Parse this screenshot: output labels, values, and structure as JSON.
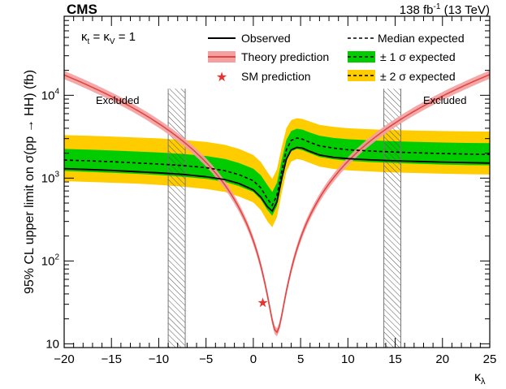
{
  "chart_data": {
    "type": "line",
    "experiment": "CMS",
    "lumi_value": "138 fb",
    "lumi_exponent": "-1",
    "lumi_energy": " (13 TeV)",
    "coupling_note": {
      "k": "κ",
      "t": "t",
      "eq": " = ",
      "v": "V",
      "val": " = 1"
    },
    "ylabel": "95% CL upper limit on σ(pp → HH) (fb)",
    "xlabel": {
      "k": "κ",
      "sub": "λ"
    },
    "xlim": [
      -20,
      25
    ],
    "ylim": [
      9,
      90000
    ],
    "yscale": "log",
    "x_ticks": [
      -20,
      -15,
      -10,
      -5,
      0,
      5,
      10,
      15,
      20,
      25
    ],
    "x_tick_labels": [
      "−20",
      "−15",
      "−10",
      "−5",
      "0",
      "5",
      "10",
      "15",
      "20",
      "25"
    ],
    "y_ticks": [
      {
        "base": "10",
        "exp": ""
      },
      {
        "base": "10",
        "exp": "2"
      },
      {
        "base": "10",
        "exp": "3"
      },
      {
        "base": "10",
        "exp": "4"
      }
    ],
    "y_tick_values": [
      10,
      100,
      1000,
      10000
    ],
    "excluded_label": "Excluded",
    "excluded_bands": [
      [
        -9.0,
        -7.2
      ],
      [
        13.8,
        15.6
      ]
    ],
    "legend": {
      "observed": "Observed",
      "median": "Median expected",
      "theory": "Theory prediction",
      "one_sigma": "± 1 σ expected",
      "sm": "SM prediction",
      "two_sigma": "± 2 σ expected"
    },
    "colors": {
      "observed": "#000000",
      "one_sigma": "#00cc00",
      "two_sigma": "#ffcc00",
      "theory_line": "#e34545",
      "theory_band": "#f3a0a0",
      "sm_star": "#e8322f",
      "hatch": "#555555"
    },
    "sm_point": {
      "x": 1.0,
      "y": 32
    },
    "kappa": [
      -20,
      -17.5,
      -15,
      -12.5,
      -10,
      -7.5,
      -5,
      -3,
      -1.5,
      0,
      0.8,
      1.5,
      2.0,
      2.5,
      3.0,
      3.5,
      4.0,
      4.6,
      5.2,
      6,
      7,
      8.5,
      10,
      12.5,
      15,
      17.5,
      20,
      22.5,
      25
    ],
    "series": [
      {
        "name": "Observed",
        "values": [
          1300,
          1270,
          1240,
          1200,
          1160,
          1110,
          1040,
          960,
          860,
          720,
          590,
          450,
          400,
          520,
          980,
          1700,
          2200,
          2350,
          2300,
          2100,
          1900,
          1780,
          1720,
          1660,
          1620,
          1590,
          1560,
          1540,
          1520
        ]
      },
      {
        "name": "Median expected",
        "values": [
          1650,
          1620,
          1580,
          1530,
          1480,
          1420,
          1340,
          1230,
          1100,
          930,
          760,
          560,
          470,
          620,
          1200,
          2200,
          2850,
          3050,
          2950,
          2700,
          2450,
          2300,
          2200,
          2120,
          2060,
          2020,
          1980,
          1950,
          1930
        ]
      },
      {
        "name": "+1 sigma",
        "values": [
          2250,
          2210,
          2160,
          2100,
          2040,
          1960,
          1850,
          1700,
          1520,
          1300,
          1080,
          820,
          680,
          880,
          1650,
          2900,
          3700,
          3950,
          3850,
          3550,
          3250,
          3050,
          2950,
          2850,
          2780,
          2730,
          2690,
          2660,
          2640
        ]
      },
      {
        "name": "-1 sigma",
        "values": [
          1220,
          1190,
          1160,
          1130,
          1090,
          1040,
          980,
          900,
          800,
          680,
          550,
          410,
          350,
          460,
          880,
          1600,
          2100,
          2250,
          2170,
          1990,
          1800,
          1690,
          1620,
          1560,
          1520,
          1490,
          1460,
          1440,
          1430
        ]
      },
      {
        "name": "+2 sigma",
        "values": [
          3300,
          3250,
          3180,
          3100,
          3020,
          2900,
          2740,
          2520,
          2250,
          1900,
          1560,
          1180,
          980,
          1280,
          2350,
          4000,
          5000,
          5300,
          5180,
          4800,
          4400,
          4150,
          4000,
          3880,
          3800,
          3740,
          3700,
          3670,
          3650
        ]
      },
      {
        "name": "-2 sigma",
        "values": [
          920,
          900,
          880,
          860,
          830,
          790,
          740,
          680,
          600,
          510,
          410,
          300,
          255,
          340,
          660,
          1200,
          1580,
          1700,
          1650,
          1520,
          1380,
          1290,
          1240,
          1200,
          1170,
          1150,
          1130,
          1115,
          1105
        ]
      }
    ]
  }
}
